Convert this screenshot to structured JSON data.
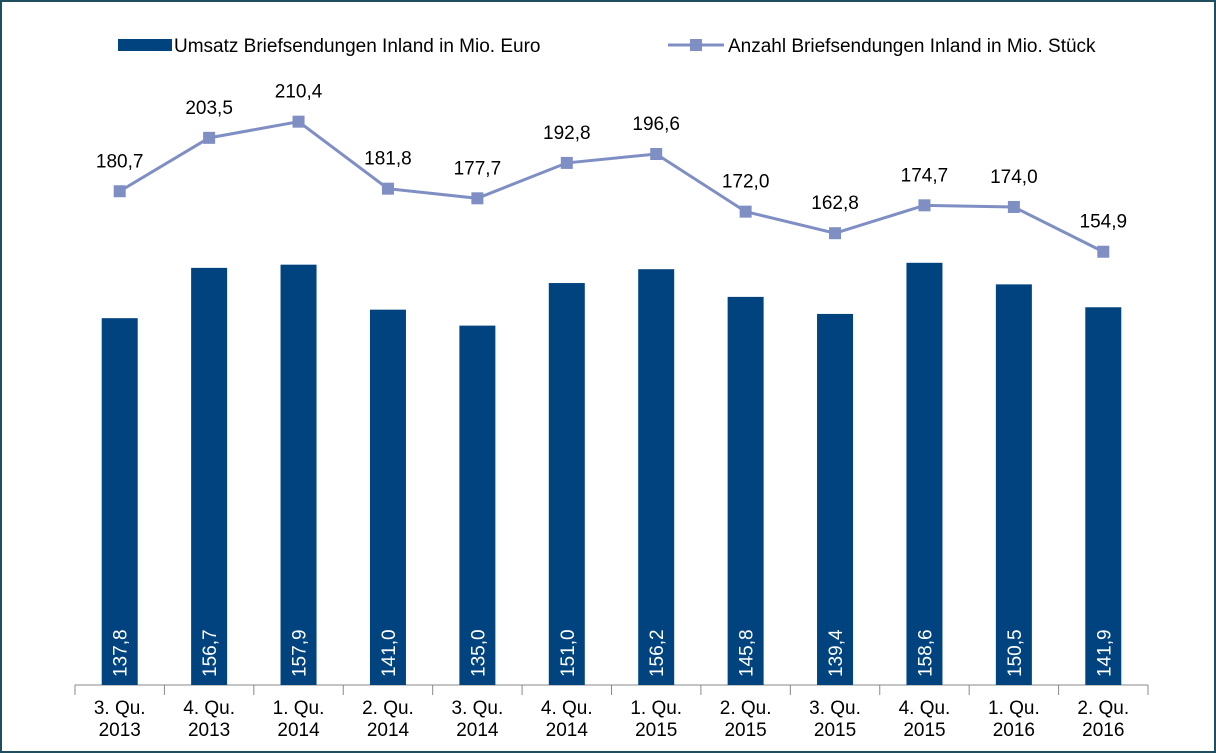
{
  "chart_data": {
    "type": "bar-line",
    "categories": [
      [
        "3. Qu.",
        "2013"
      ],
      [
        "4. Qu.",
        "2013"
      ],
      [
        "1. Qu.",
        "2014"
      ],
      [
        "2. Qu.",
        "2014"
      ],
      [
        "3. Qu.",
        "2014"
      ],
      [
        "4. Qu.",
        "2014"
      ],
      [
        "1. Qu.",
        "2015"
      ],
      [
        "2. Qu.",
        "2015"
      ],
      [
        "3. Qu.",
        "2015"
      ],
      [
        "4. Qu.",
        "2015"
      ],
      [
        "1. Qu.",
        "2016"
      ],
      [
        "2. Qu.",
        "2016"
      ]
    ],
    "series": [
      {
        "name": "Umsatz Briefsendungen Inland in Mio. Euro",
        "type": "bar",
        "color": "#00437f",
        "values": [
          137.8,
          156.7,
          157.9,
          141.0,
          135.0,
          151.0,
          156.2,
          145.8,
          139.4,
          158.6,
          150.5,
          141.9
        ],
        "value_labels": [
          "137,8",
          "156,7",
          "157,9",
          "141,0",
          "135,0",
          "151,0",
          "156,2",
          "145,8",
          "139,4",
          "158,6",
          "150,5",
          "141,9"
        ]
      },
      {
        "name": "Anzahl Briefsendungen Inland in Mio. Stück",
        "type": "line",
        "axis": "y2",
        "color": "#7f8fc4",
        "values": [
          180.7,
          203.5,
          210.4,
          181.8,
          177.7,
          192.8,
          196.6,
          172.0,
          162.8,
          174.7,
          174.0,
          154.9
        ],
        "value_labels": [
          "180,7",
          "203,5",
          "210,4",
          "181,8",
          "177,7",
          "192,8",
          "196,6",
          "172,0",
          "162,8",
          "174,7",
          "174,0",
          "154,9"
        ]
      }
    ],
    "ylim": [
      0,
      250
    ],
    "y2lim": [
      -30,
      254
    ],
    "legend": "top"
  }
}
